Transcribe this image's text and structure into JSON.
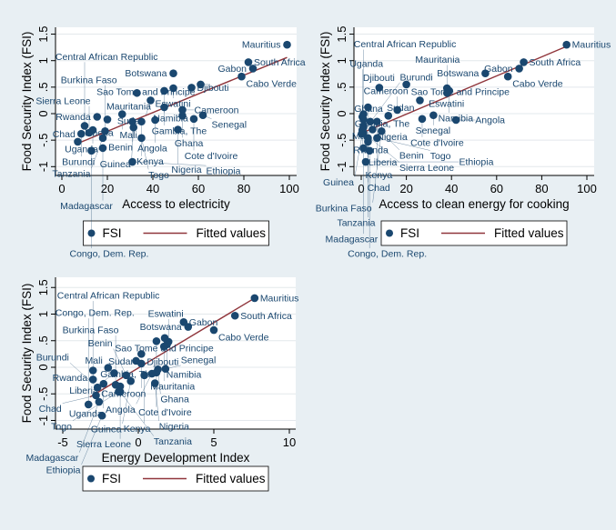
{
  "chart_data": [
    {
      "type": "scatter",
      "xkey": "elec",
      "xlabel": "Access to electricity",
      "ylabel": "Food Security Index (FSI)",
      "xticks": [
        0,
        20,
        40,
        60,
        80,
        100
      ],
      "xlim": [
        -1,
        104
      ],
      "ylim": [
        -1.2,
        1.55
      ],
      "fit": [
        [
          6.5,
          -0.57
        ],
        [
          99,
          1.06
        ]
      ]
    },
    {
      "type": "scatter",
      "xkey": "cook",
      "xlabel": "Access to clean energy for cooking",
      "ylabel": "Food Security Index (FSI)",
      "xticks": [
        0,
        20,
        40,
        60,
        80,
        100
      ],
      "xlim": [
        -3,
        103
      ],
      "ylim": [
        -1.2,
        1.55
      ],
      "fit": [
        [
          0,
          -0.37
        ],
        [
          91,
          1.27
        ]
      ]
    },
    {
      "type": "scatter",
      "xkey": "edi",
      "xlabel": "Energy Development Index",
      "ylabel": "Food Security Index (FSI)",
      "xticks": [
        -5,
        0,
        5,
        10
      ],
      "xlim": [
        -5.5,
        10.5
      ],
      "ylim": [
        -1.2,
        1.55
      ],
      "fit": [
        [
          -3.2,
          -0.56
        ],
        [
          7.7,
          1.3
        ]
      ]
    }
  ],
  "yticks": [
    {
      "v": -1,
      "t": "-1"
    },
    {
      "v": -0.5,
      "t": "-.5"
    },
    {
      "v": 0,
      "t": "0"
    },
    {
      "v": 0.5,
      "t": ".5"
    },
    {
      "v": 1,
      "t": "1"
    },
    {
      "v": 1.5,
      "t": "1.5"
    }
  ],
  "legend": {
    "scatter": "FSI",
    "line": "Fitted values"
  },
  "colors": {
    "dot": "#1a476f",
    "fit": "#90353b",
    "grid": "#e3e8ec"
  },
  "countries": [
    {
      "name": "Mauritius",
      "elec": 99,
      "cook": 91,
      "edi": 7.7,
      "fsi": 1.3
    },
    {
      "name": "South Africa",
      "elec": 82,
      "cook": 72,
      "edi": 6.4,
      "fsi": 0.97
    },
    {
      "name": "Gabon",
      "elec": 84,
      "cook": 70,
      "edi": 3.0,
      "fsi": 0.85
    },
    {
      "name": "Cabo Verde",
      "elec": 79,
      "cook": 65,
      "edi": 5.0,
      "fsi": 0.7
    },
    {
      "name": "Botswana",
      "elec": 49,
      "cook": 55,
      "edi": 3.3,
      "fsi": 0.76
    },
    {
      "name": "Sao Tome and Principe",
      "elec": 61,
      "cook": 20,
      "edi": 1.75,
      "fsi": 0.55
    },
    {
      "name": "Djibouti",
      "elec": 57,
      "cook": 8,
      "edi": 1.2,
      "fsi": 0.49
    },
    {
      "name": "Eswatini",
      "elec": 49,
      "cook": 38,
      "edi": 2.0,
      "fsi": 0.48
    },
    {
      "name": "Namibia",
      "elec": 45,
      "cook": 39,
      "edi": 1.9,
      "fsi": 0.43
    },
    {
      "name": "Mauritania",
      "elec": 33,
      "cook": 38,
      "edi": 1.7,
      "fsi": 0.39
    },
    {
      "name": "Sudan",
      "elec": 39,
      "cook": 26,
      "edi": 0.2,
      "fsi": 0.25
    },
    {
      "name": "Gambia, The",
      "elec": 45,
      "cook": 3,
      "edi": -0.15,
      "fsi": 0.12
    },
    {
      "name": "Cameroon",
      "elec": 53,
      "cook": 16,
      "edi": 0.2,
      "fsi": 0.07
    },
    {
      "name": "Ghana",
      "elec": 53,
      "cook": 12,
      "edi": 1.3,
      "fsi": -0.04
    },
    {
      "name": "Senegal",
      "elec": 62,
      "cook": 32,
      "edi": 1.8,
      "fsi": -0.03
    },
    {
      "name": "Cote d'Ivoire",
      "elec": 58,
      "cook": 27,
      "edi": 1.2,
      "fsi": -0.1
    },
    {
      "name": "Angola",
      "elec": 41,
      "cook": 42,
      "edi": 0.9,
      "fsi": -0.12
    },
    {
      "name": "Nigeria",
      "elec": 51,
      "cook": 5,
      "edi": 1.1,
      "fsi": -0.3
    },
    {
      "name": "Mali",
      "elec": 26.5,
      "cook": 1,
      "edi": -2.0,
      "fsi": -0.01
    },
    {
      "name": "Rwanda",
      "elec": 15.5,
      "cook": 0.5,
      "edi": -3.0,
      "fsi": -0.06
    },
    {
      "name": "Liberia",
      "elec": 20,
      "cook": 1,
      "edi": -1.6,
      "fsi": -0.11
    },
    {
      "name": "Benin",
      "elec": 31,
      "cook": 4,
      "edi": -0.8,
      "fsi": -0.15
    },
    {
      "name": "Kenya",
      "elec": 35,
      "cook": 7,
      "edi": 0.4,
      "fsi": -0.15
    },
    {
      "name": "Central African Republic",
      "elec": 10,
      "cook": 1,
      "edi": -3.0,
      "fsi": -0.23
    },
    {
      "name": "Guinea",
      "elec": 31.5,
      "cook": 1,
      "edi": -0.5,
      "fsi": -0.26
    },
    {
      "name": "Uganda",
      "elec": 13.6,
      "cook": 0.5,
      "edi": -2.3,
      "fsi": -0.31
    },
    {
      "name": "Sierra Leone",
      "elec": 12,
      "cook": 1,
      "edi": -1.2,
      "fsi": -0.36
    },
    {
      "name": "Burkina Faso",
      "elec": 19,
      "cook": 9,
      "edi": -1.5,
      "fsi": -0.33
    },
    {
      "name": "Burundi",
      "elec": 8.5,
      "cook": 0.2,
      "edi": -2.7,
      "fsi": -0.38
    },
    {
      "name": "Tanzania",
      "elec": 18,
      "cook": 3,
      "edi": -1.2,
      "fsi": -0.46
    },
    {
      "name": "Togo",
      "elec": 35,
      "cook": 7,
      "edi": -1.3,
      "fsi": -0.46
    },
    {
      "name": "Chad",
      "elec": 7,
      "cook": 3,
      "edi": -2.8,
      "fsi": -0.53
    },
    {
      "name": "Madagascar",
      "elec": 18,
      "cook": 1,
      "edi": -2.6,
      "fsi": -0.65
    },
    {
      "name": "Congo, Dem. Rep.",
      "elec": 13,
      "cook": 3.7,
      "edi": -3.3,
      "fsi": -0.7
    },
    {
      "name": "Ethiopia",
      "elec": 31,
      "cook": 2,
      "edi": -2.4,
      "fsi": -0.91
    }
  ]
}
